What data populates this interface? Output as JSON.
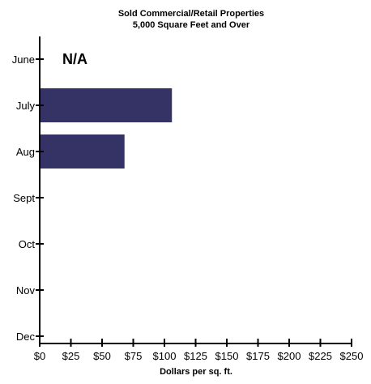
{
  "chart_data": {
    "type": "bar",
    "orientation": "horizontal",
    "title": "Sold Commercial/Retail Properties",
    "subtitle": "5,000 Square Feet and Over",
    "xlabel": "Dollars per sq. ft.",
    "ylabel": "",
    "categories": [
      "June",
      "July",
      "Aug",
      "Sept",
      "Oct",
      "Nov",
      "Dec"
    ],
    "values": [
      null,
      106,
      68,
      null,
      null,
      null,
      null
    ],
    "xlim": [
      0,
      250
    ],
    "x_ticks": [
      0,
      25,
      50,
      75,
      100,
      125,
      150,
      175,
      200,
      225,
      250
    ],
    "x_tick_labels": [
      "$0",
      "$25",
      "$50",
      "$75",
      "$100",
      "$125",
      "$150",
      "$175",
      "$200",
      "$225",
      "$250"
    ],
    "annotations": [
      {
        "category": "June",
        "text": "N/A"
      }
    ],
    "grid": false,
    "colors": {
      "bar": "#353366",
      "axis": "#000000",
      "text": "#000000"
    }
  }
}
